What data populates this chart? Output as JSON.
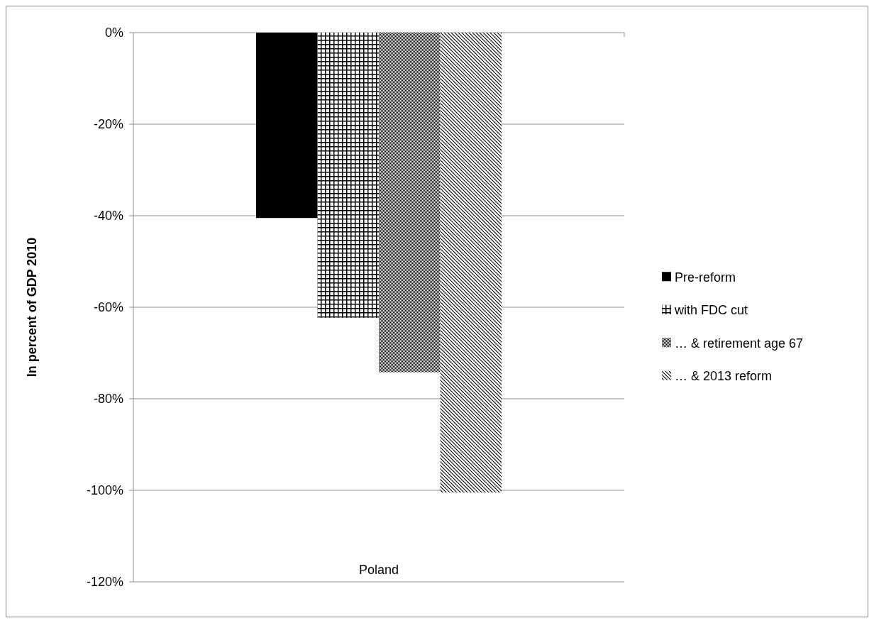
{
  "chart_data": {
    "type": "bar",
    "ylabel": "In percent of GDP 2010",
    "categories": [
      "Poland"
    ],
    "series": [
      {
        "name": "Pre-reform",
        "color": "#000000",
        "values": [
          -40.5
        ]
      },
      {
        "name": "with FDC cut",
        "color": "#000000",
        "values": [
          -62.3
        ]
      },
      {
        "name": "… & retirement age 67",
        "color": "#000000",
        "values": [
          -74.2
        ]
      },
      {
        "name": "… & 2013 reform",
        "color": "#000000",
        "values": [
          -100.5
        ]
      }
    ],
    "ylim": [
      -120,
      0
    ],
    "yticks": [
      {
        "value": 0,
        "label": "0%"
      },
      {
        "value": -20,
        "label": "-20%"
      },
      {
        "value": -40,
        "label": "-40%"
      },
      {
        "value": -60,
        "label": "-60%"
      },
      {
        "value": -80,
        "label": "-80%"
      },
      {
        "value": -100,
        "label": "-100%"
      },
      {
        "value": -120,
        "label": "-120%"
      }
    ],
    "grid": "y",
    "legend": "right"
  }
}
